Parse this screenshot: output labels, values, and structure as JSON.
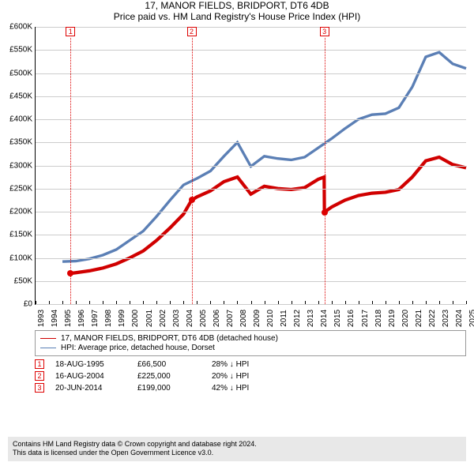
{
  "title": "17, MANOR FIELDS, BRIDPORT, DT6 4DB",
  "subtitle": "Price paid vs. HM Land Registry's House Price Index (HPI)",
  "chart": {
    "type": "line",
    "background_color": "#ffffff",
    "grid_color": "#cccccc",
    "ylim": [
      0,
      600000
    ],
    "ytick_step": 50000,
    "y_ticks": [
      "£0",
      "£50K",
      "£100K",
      "£150K",
      "£200K",
      "£250K",
      "£300K",
      "£350K",
      "£400K",
      "£450K",
      "£500K",
      "£550K",
      "£600K"
    ],
    "x_years": [
      1993,
      1994,
      1995,
      1996,
      1997,
      1998,
      1999,
      2000,
      2001,
      2002,
      2003,
      2004,
      2005,
      2006,
      2007,
      2008,
      2009,
      2010,
      2011,
      2012,
      2013,
      2014,
      2015,
      2016,
      2017,
      2018,
      2019,
      2020,
      2021,
      2022,
      2023,
      2024,
      2025
    ],
    "label_fontsize": 10,
    "series": [
      {
        "name": "hpi",
        "label": "HPI: Average price, detached house, Dorset",
        "color": "#5b7fb5",
        "line_width": 1.2,
        "points": [
          [
            1995,
            92000
          ],
          [
            1996,
            93000
          ],
          [
            1997,
            98000
          ],
          [
            1998,
            106000
          ],
          [
            1999,
            118000
          ],
          [
            2000,
            138000
          ],
          [
            2001,
            158000
          ],
          [
            2002,
            190000
          ],
          [
            2003,
            225000
          ],
          [
            2004,
            258000
          ],
          [
            2005,
            272000
          ],
          [
            2006,
            288000
          ],
          [
            2007,
            320000
          ],
          [
            2008,
            350000
          ],
          [
            2009,
            298000
          ],
          [
            2010,
            320000
          ],
          [
            2011,
            315000
          ],
          [
            2012,
            312000
          ],
          [
            2013,
            318000
          ],
          [
            2014,
            338000
          ],
          [
            2015,
            358000
          ],
          [
            2016,
            380000
          ],
          [
            2017,
            400000
          ],
          [
            2018,
            410000
          ],
          [
            2019,
            412000
          ],
          [
            2020,
            425000
          ],
          [
            2021,
            470000
          ],
          [
            2022,
            535000
          ],
          [
            2023,
            545000
          ],
          [
            2024,
            520000
          ],
          [
            2025,
            510000
          ]
        ]
      },
      {
        "name": "property",
        "label": "17, MANOR FIELDS, BRIDPORT, DT6 4DB (detached house)",
        "color": "#d00000",
        "line_width": 1.5,
        "points": [
          [
            1995.6,
            66500
          ],
          [
            1996,
            68000
          ],
          [
            1997,
            72000
          ],
          [
            1998,
            78000
          ],
          [
            1999,
            87000
          ],
          [
            2000,
            100000
          ],
          [
            2001,
            115000
          ],
          [
            2002,
            138000
          ],
          [
            2003,
            165000
          ],
          [
            2004,
            195000
          ],
          [
            2004.6,
            225000
          ],
          [
            2005,
            232000
          ],
          [
            2006,
            245000
          ],
          [
            2007,
            265000
          ],
          [
            2008,
            275000
          ],
          [
            2009,
            238000
          ],
          [
            2010,
            255000
          ],
          [
            2011,
            250000
          ],
          [
            2012,
            248000
          ],
          [
            2013,
            252000
          ],
          [
            2014,
            270000
          ],
          [
            2014.45,
            275000
          ],
          [
            2014.47,
            199000
          ],
          [
            2015,
            210000
          ],
          [
            2016,
            225000
          ],
          [
            2017,
            235000
          ],
          [
            2018,
            240000
          ],
          [
            2019,
            242000
          ],
          [
            2020,
            248000
          ],
          [
            2021,
            275000
          ],
          [
            2022,
            310000
          ],
          [
            2023,
            318000
          ],
          [
            2024,
            302000
          ],
          [
            2025,
            295000
          ]
        ]
      }
    ],
    "event_markers": [
      {
        "n": "1",
        "year": 1995.6,
        "price": 66500
      },
      {
        "n": "2",
        "year": 2004.6,
        "price": 225000
      },
      {
        "n": "3",
        "year": 2014.47,
        "price": 199000
      }
    ]
  },
  "legend": {
    "items": [
      {
        "color": "#d00000",
        "width": 1.5,
        "label": "17, MANOR FIELDS, BRIDPORT, DT6 4DB (detached house)"
      },
      {
        "color": "#5b7fb5",
        "width": 1.2,
        "label": "HPI: Average price, detached house, Dorset"
      }
    ]
  },
  "transactions": [
    {
      "n": "1",
      "date": "18-AUG-1995",
      "price": "£66,500",
      "pct": "28% ↓ HPI"
    },
    {
      "n": "2",
      "date": "16-AUG-2004",
      "price": "£225,000",
      "pct": "20% ↓ HPI"
    },
    {
      "n": "3",
      "date": "20-JUN-2014",
      "price": "£199,000",
      "pct": "42% ↓ HPI"
    }
  ],
  "footer": {
    "line1": "Contains HM Land Registry data © Crown copyright and database right 2024.",
    "line2": "This data is licensed under the Open Government Licence v3.0."
  }
}
